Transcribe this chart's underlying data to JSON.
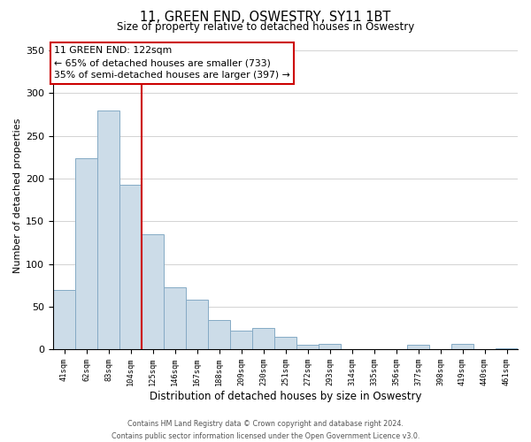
{
  "title": "11, GREEN END, OSWESTRY, SY11 1BT",
  "subtitle": "Size of property relative to detached houses in Oswestry",
  "xlabel": "Distribution of detached houses by size in Oswestry",
  "ylabel": "Number of detached properties",
  "bar_color": "#ccdce8",
  "bar_edge_color": "#85aac5",
  "marker_line_color": "#cc0000",
  "annotation_label": "11 GREEN END: 122sqm",
  "annotation_line1": "← 65% of detached houses are smaller (733)",
  "annotation_line2": "35% of semi-detached houses are larger (397) →",
  "categories": [
    "41sqm",
    "62sqm",
    "83sqm",
    "104sqm",
    "125sqm",
    "146sqm",
    "167sqm",
    "188sqm",
    "209sqm",
    "230sqm",
    "251sqm",
    "272sqm",
    "293sqm",
    "314sqm",
    "335sqm",
    "356sqm",
    "377sqm",
    "398sqm",
    "419sqm",
    "440sqm",
    "461sqm"
  ],
  "values": [
    70,
    224,
    280,
    193,
    135,
    73,
    58,
    34,
    22,
    25,
    15,
    5,
    6,
    0,
    0,
    0,
    5,
    0,
    6,
    0,
    1
  ],
  "ylim": [
    0,
    360
  ],
  "yticks": [
    0,
    50,
    100,
    150,
    200,
    250,
    300,
    350
  ],
  "footer_line1": "Contains HM Land Registry data © Crown copyright and database right 2024.",
  "footer_line2": "Contains public sector information licensed under the Open Government Licence v3.0."
}
